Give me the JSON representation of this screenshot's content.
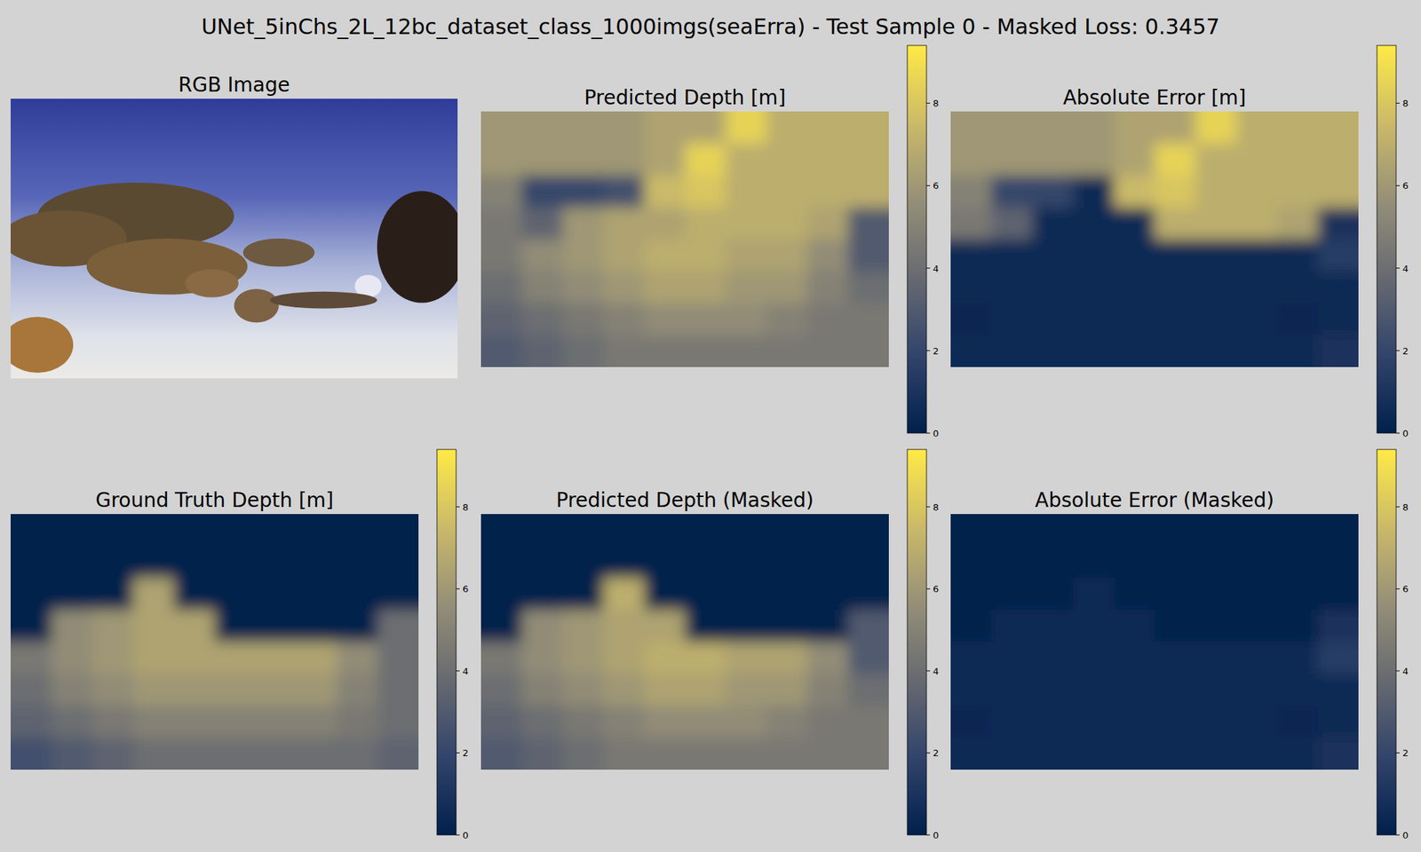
{
  "title": "UNet_5inChs_2L_12bc_dataset_class_1000imgs(seaErra) - Test Sample 0 - Masked Loss: 0.3457",
  "chart_data": [
    {
      "type": "image",
      "title": "RGB Image"
    },
    {
      "type": "heatmap",
      "title": "Predicted Depth [m]",
      "colorbar_range": [
        0,
        9.4
      ],
      "colorbar_ticks": [
        0,
        2,
        4,
        6,
        8
      ],
      "cells": [
        [
          6,
          6,
          6,
          6,
          6.5,
          6.5,
          8.5,
          7,
          7,
          7
        ],
        [
          6,
          6,
          6,
          6,
          6.5,
          8.5,
          7,
          7,
          7,
          7
        ],
        [
          5,
          2,
          2,
          2.5,
          7.5,
          8,
          7,
          7,
          7,
          7
        ],
        [
          4.5,
          3.5,
          6,
          6.5,
          6.5,
          7,
          7,
          7,
          6.5,
          3
        ],
        [
          4.5,
          5.5,
          6,
          6.5,
          7,
          7,
          6.5,
          6.5,
          5.5,
          3
        ],
        [
          4,
          5,
          5.5,
          6,
          6.5,
          6.5,
          6,
          6,
          5,
          4
        ],
        [
          3.5,
          4,
          4.5,
          5,
          5.5,
          5.5,
          5.5,
          5,
          4.5,
          4.5
        ],
        [
          3,
          3.5,
          4,
          4.5,
          4.5,
          4.5,
          4.5,
          4.5,
          4.5,
          4.5
        ]
      ]
    },
    {
      "type": "heatmap",
      "title": "Absolute Error [m]",
      "colorbar_range": [
        0,
        9.4
      ],
      "colorbar_ticks": [
        0,
        2,
        4,
        6,
        8
      ],
      "cells": [
        [
          6,
          6,
          6,
          6,
          6.5,
          6.5,
          8.5,
          7,
          7,
          7
        ],
        [
          6,
          6,
          6,
          6,
          6.5,
          8.5,
          7,
          7,
          7,
          7
        ],
        [
          5,
          2,
          2,
          0.5,
          7.5,
          8,
          7,
          7,
          7,
          7
        ],
        [
          4.5,
          3.5,
          0.5,
          0.5,
          0.5,
          7,
          7,
          7,
          6.5,
          1
        ],
        [
          0.5,
          0.5,
          0.5,
          0.5,
          0.5,
          0.5,
          0.5,
          0.5,
          0.5,
          1.5
        ],
        [
          0.5,
          0.5,
          0.5,
          0.5,
          0.5,
          0.5,
          0.5,
          0.5,
          0.5,
          0.5
        ],
        [
          0.3,
          0.5,
          0.5,
          0.5,
          0.5,
          0.5,
          0.5,
          0.5,
          0.3,
          0.5
        ],
        [
          0.5,
          0.5,
          0.5,
          0.5,
          0.5,
          0.5,
          0.5,
          0.5,
          0.5,
          1
        ]
      ]
    },
    {
      "type": "heatmap",
      "title": "Ground Truth Depth [m]",
      "colorbar_range": [
        0,
        9.4
      ],
      "colorbar_ticks": [
        0,
        2,
        4,
        6,
        8
      ],
      "cells": [
        [
          0,
          0,
          0,
          0,
          0,
          0,
          0,
          0,
          0,
          0
        ],
        [
          0,
          0,
          0,
          0,
          0,
          0,
          0,
          0,
          0,
          0
        ],
        [
          0,
          0,
          0,
          6.5,
          0,
          0,
          0,
          0,
          0,
          0
        ],
        [
          0,
          5.5,
          6,
          6.5,
          6.5,
          0,
          0,
          0,
          0,
          4
        ],
        [
          4.5,
          5.5,
          6,
          6.5,
          6.5,
          6.5,
          6.5,
          6.5,
          5.5,
          4
        ],
        [
          4,
          5,
          5.5,
          6,
          6,
          6,
          6,
          6,
          5,
          4
        ],
        [
          3.5,
          4,
          4.5,
          5,
          5,
          5,
          5,
          5,
          4.5,
          4
        ],
        [
          2.5,
          3,
          3.5,
          4,
          4,
          4,
          4,
          4,
          4,
          3.5
        ]
      ]
    },
    {
      "type": "heatmap",
      "title": "Predicted Depth (Masked)",
      "colorbar_range": [
        0,
        9.4
      ],
      "colorbar_ticks": [
        0,
        2,
        4,
        6,
        8
      ],
      "cells": [
        [
          0,
          0,
          0,
          0,
          0,
          0,
          0,
          0,
          0,
          0
        ],
        [
          0,
          0,
          0,
          0,
          0,
          0,
          0,
          0,
          0,
          0
        ],
        [
          0,
          0,
          0,
          7,
          0,
          0,
          0,
          0,
          0,
          0
        ],
        [
          0,
          5.5,
          6,
          6.5,
          6.5,
          0,
          0,
          0,
          0,
          3
        ],
        [
          4.5,
          5.5,
          6,
          6.5,
          7,
          7,
          6.5,
          6.5,
          5.5,
          3
        ],
        [
          4,
          5,
          5.5,
          6,
          6.5,
          6.5,
          6,
          6,
          5,
          4
        ],
        [
          3.5,
          4,
          4.5,
          5,
          5.5,
          5.5,
          5.5,
          5,
          4.5,
          4.5
        ],
        [
          3,
          3.5,
          4,
          4.5,
          4.5,
          4.5,
          4.5,
          4.5,
          4.5,
          4.5
        ]
      ]
    },
    {
      "type": "heatmap",
      "title": "Absolute Error (Masked)",
      "colorbar_range": [
        0,
        9.4
      ],
      "colorbar_ticks": [
        0,
        2,
        4,
        6,
        8
      ],
      "cells": [
        [
          0,
          0,
          0,
          0,
          0,
          0,
          0,
          0,
          0,
          0
        ],
        [
          0,
          0,
          0,
          0,
          0,
          0,
          0,
          0,
          0,
          0
        ],
        [
          0,
          0,
          0,
          0.5,
          0,
          0,
          0,
          0,
          0,
          0
        ],
        [
          0,
          0.5,
          0.5,
          0.5,
          0.5,
          0,
          0,
          0,
          0,
          1
        ],
        [
          0.5,
          0.5,
          0.5,
          0.5,
          0.5,
          0.5,
          0.5,
          0.5,
          0.5,
          1.5
        ],
        [
          0.5,
          0.5,
          0.5,
          0.5,
          0.5,
          0.5,
          0.5,
          0.5,
          0.5,
          0.5
        ],
        [
          0.3,
          0.5,
          0.5,
          0.5,
          0.5,
          0.5,
          0.5,
          0.5,
          0.3,
          0.5
        ],
        [
          0.5,
          0.5,
          0.5,
          0.5,
          0.5,
          0.5,
          0.5,
          0.5,
          0.5,
          1
        ]
      ]
    }
  ]
}
